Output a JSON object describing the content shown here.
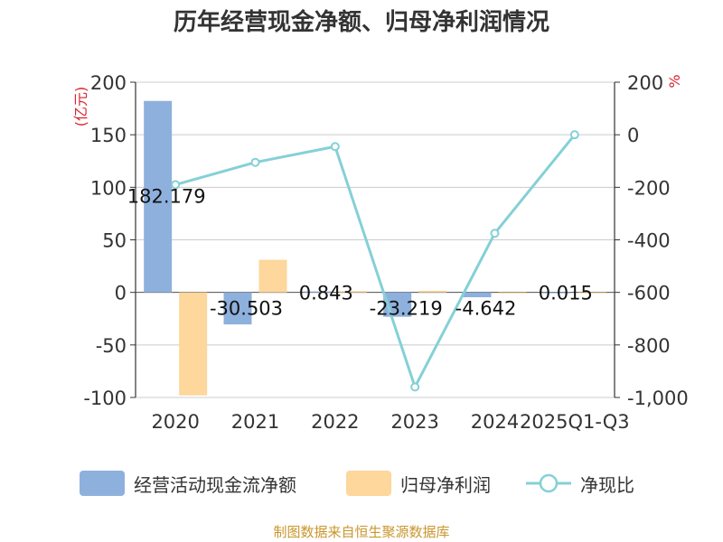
{
  "chart_data": {
    "type": "bar+line",
    "title": "历年经营现金净额、归母净利润情况",
    "categories": [
      "2020",
      "2021",
      "2022",
      "2023",
      "2024",
      "2025Q1-Q3"
    ],
    "y_left": {
      "label": "(亿元)",
      "min": -100,
      "max": 200,
      "ticks": [
        -100,
        -50,
        0,
        50,
        100,
        150,
        200
      ]
    },
    "y_right": {
      "label": "%",
      "min": -1000,
      "max": 200,
      "ticks": [
        -1000,
        -800,
        -600,
        -400,
        -200,
        0,
        200
      ],
      "tick_labels": [
        "-1,000",
        "-800",
        "-600",
        "-400",
        "-200",
        "0",
        "200"
      ]
    },
    "series": [
      {
        "name": "经营活动现金流净额",
        "type": "bar",
        "axis": "left",
        "color": "#8eb0dc",
        "values": [
          182.179,
          -30.503,
          0.843,
          -23.219,
          -4.642,
          0.015
        ],
        "labels": [
          "182.179",
          "-30.503",
          "0.843",
          "-23.219",
          "-4.642",
          "0.015"
        ]
      },
      {
        "name": "归母净利润",
        "type": "bar",
        "axis": "left",
        "color": "#fdd79b",
        "values": [
          -98,
          31,
          1.2,
          1.5,
          -1.0,
          -0.5
        ]
      },
      {
        "name": "净现比",
        "type": "line",
        "axis": "right",
        "color": "#85d0d7",
        "values": [
          -190,
          -105,
          -45,
          -960,
          -375,
          0
        ]
      }
    ],
    "legend_position": "bottom",
    "grid": true
  },
  "footer": {
    "source": "制图数据来自恒生聚源数据库"
  }
}
